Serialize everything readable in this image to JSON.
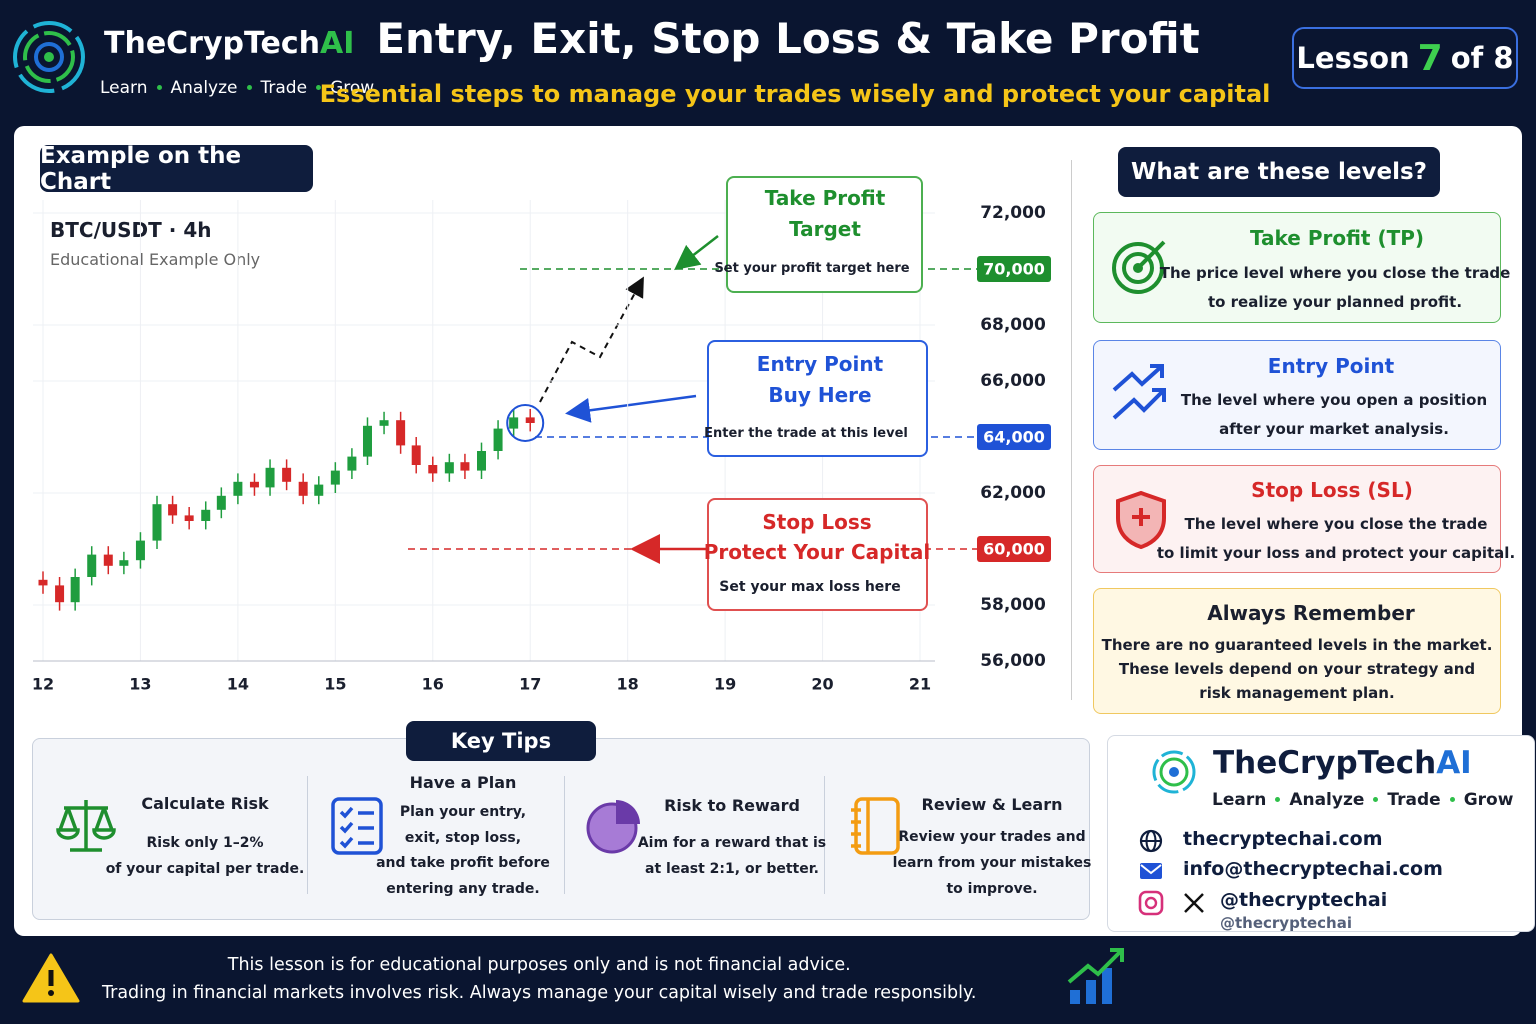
{
  "header": {
    "brand": "TheCrypTech",
    "brand_suffix": "AI",
    "tagline": [
      "Learn",
      "Analyze",
      "Trade",
      "Grow"
    ],
    "title": "Entry, Exit, Stop Loss & Take Profit",
    "subtitle": "Essential steps to manage your trades wisely and protect your capital",
    "lesson": {
      "label": "Lesson",
      "current": "7",
      "of": "of 8"
    }
  },
  "chart_section": {
    "heading": "Example on the Chart",
    "pair": "BTC/USDT",
    "separator": "·",
    "timeframe": "4h",
    "note": "Educational Example Only"
  },
  "chart_data": {
    "type": "candlestick",
    "x": [
      12,
      12.17,
      12.33,
      12.5,
      12.67,
      12.83,
      13,
      13.17,
      13.33,
      13.5,
      13.67,
      13.83,
      14,
      14.17,
      14.33,
      14.5,
      14.67,
      14.83,
      15,
      15.17,
      15.33,
      15.5,
      15.67,
      15.83,
      16,
      16.17,
      16.33,
      16.5,
      16.67,
      16.83,
      17
    ],
    "open": [
      58900,
      58700,
      58100,
      59000,
      59800,
      59400,
      59600,
      60300,
      61600,
      61200,
      61000,
      61400,
      61900,
      62400,
      62200,
      62900,
      62400,
      61900,
      62300,
      62800,
      63300,
      64400,
      64600,
      63700,
      63000,
      62700,
      63100,
      62800,
      63500,
      64300,
      64700
    ],
    "high": [
      59200,
      59000,
      59300,
      60100,
      60100,
      59900,
      60600,
      61900,
      61900,
      61500,
      61700,
      62200,
      62700,
      62700,
      63200,
      63200,
      62700,
      62600,
      63100,
      63600,
      64700,
      64900,
      64900,
      64000,
      63300,
      63400,
      63400,
      63800,
      64600,
      65000,
      65000
    ],
    "low": [
      58400,
      57800,
      57800,
      58700,
      59100,
      59100,
      59300,
      60000,
      60900,
      60700,
      60700,
      61100,
      61600,
      61900,
      61900,
      62100,
      61600,
      61600,
      62000,
      62500,
      63000,
      64100,
      63400,
      62700,
      62400,
      62400,
      62500,
      62500,
      63200,
      64000,
      64200
    ],
    "close": [
      58700,
      58100,
      59000,
      59800,
      59400,
      59600,
      60300,
      61600,
      61200,
      61000,
      61400,
      61900,
      62400,
      62200,
      62900,
      62400,
      61900,
      62300,
      62800,
      63300,
      64400,
      64600,
      63700,
      63000,
      62700,
      63100,
      62800,
      63500,
      64300,
      64700,
      64500
    ],
    "up_color": "#1f9d3f",
    "down_color": "#d62828",
    "xlim": [
      12,
      21
    ],
    "xticks": [
      12,
      13,
      14,
      15,
      16,
      17,
      18,
      19,
      20,
      21
    ],
    "ylim": [
      56000,
      72000
    ],
    "yticks": [
      {
        "value": 56000,
        "label": "56,000"
      },
      {
        "value": 58000,
        "label": "58,000"
      },
      {
        "value": 62000,
        "label": "62,000"
      },
      {
        "value": 66000,
        "label": "66,000"
      },
      {
        "value": 68000,
        "label": "68,000"
      },
      {
        "value": 72000,
        "label": "72,000"
      }
    ],
    "grid": true,
    "levels": [
      {
        "value": 70000,
        "label": "70,000",
        "color": "#1e8f2e",
        "title": "Take Profit",
        "subtitle": "Target",
        "note": "Set your profit target here"
      },
      {
        "value": 64000,
        "label": "64,000",
        "color": "#1f52d6",
        "title": "Entry Point",
        "subtitle": "Buy Here",
        "note": "Enter the trade at this level"
      },
      {
        "value": 60000,
        "label": "60,000",
        "color": "#d62828",
        "title": "Stop Loss",
        "subtitle": "Protect Your Capital",
        "note": "Set your max loss here"
      }
    ]
  },
  "levels_panel": {
    "heading": "What are these levels?",
    "cards": [
      {
        "title": "Take Profit (TP)",
        "lines": [
          "The price level where you close the trade",
          "to realize your planned profit."
        ]
      },
      {
        "title": "Entry Point",
        "lines": [
          "The level where you open a position",
          "after your market analysis."
        ]
      },
      {
        "title": "Stop Loss (SL)",
        "lines": [
          "The level where you close the trade",
          "to limit your loss and protect your capital."
        ]
      },
      {
        "title": "Always Remember",
        "lines": [
          "There are no guaranteed levels in the market.",
          "These levels depend on your strategy and",
          "risk management plan."
        ]
      }
    ]
  },
  "key_tips": {
    "heading": "Key Tips",
    "tips": [
      {
        "title": "Calculate Risk",
        "lines": [
          "Risk only 1–2%",
          "of your capital per trade."
        ]
      },
      {
        "title": "Have a Plan",
        "lines": [
          "Plan your entry,",
          "exit, stop loss,",
          "and take profit before",
          "entering any trade."
        ]
      },
      {
        "title": "Risk to Reward",
        "lines": [
          "Aim for a reward that is",
          "at least 2:1, or better."
        ]
      },
      {
        "title": "Review & Learn",
        "lines": [
          "Review your trades and",
          "learn from your mistakes",
          "to improve."
        ]
      }
    ]
  },
  "contact": {
    "brand": "TheCrypTech",
    "brand_suffix": "AI",
    "tagline": [
      "Learn",
      "Analyze",
      "Trade",
      "Grow"
    ],
    "website": "thecryptechai.com",
    "email": "info@thecryptechai.com",
    "handle": "@thecryptechai",
    "handle_secondary": "@thecryptechai"
  },
  "footer": {
    "lines": [
      "This lesson is for educational purposes only and is not financial advice.",
      "Trading in financial markets involves risk. Always manage your capital wisely and trade responsibly."
    ]
  }
}
